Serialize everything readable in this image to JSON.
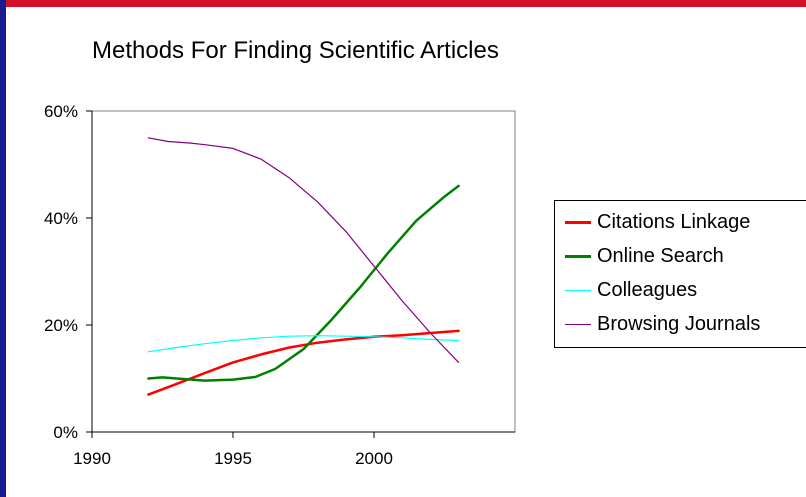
{
  "chart_data": {
    "type": "line",
    "title": "Methods For Finding Scientific Articles",
    "xlabel": "",
    "ylabel": "",
    "xlim": [
      1990,
      2005
    ],
    "ylim": [
      0,
      60
    ],
    "x_ticks": [
      "1990",
      "1995",
      "2000"
    ],
    "y_ticks": [
      "0%",
      "20%",
      "40%",
      "60%"
    ],
    "grid": false,
    "legend_position": "right",
    "series": [
      {
        "name": "Citations Linkage",
        "color": "#ff0000",
        "x": [
          1992,
          1993,
          1994,
          1995,
          1996,
          1997,
          1998,
          1999,
          2000,
          2001,
          2002,
          2003
        ],
        "values": [
          7,
          9,
          11,
          13,
          14.5,
          15.8,
          16.7,
          17.3,
          17.8,
          18.1,
          18.5,
          18.9
        ]
      },
      {
        "name": "Online Search",
        "color": "#008000",
        "x": [
          1992,
          1992.5,
          1993,
          1994,
          1995,
          1995.8,
          1996.5,
          1997.5,
          1998.5,
          1999.5,
          2000.5,
          2001.5,
          2002.5,
          2003
        ],
        "values": [
          10,
          10.2,
          10,
          9.6,
          9.8,
          10.3,
          11.8,
          15.5,
          21,
          27,
          33.5,
          39.5,
          44,
          46
        ]
      },
      {
        "name": "Colleagues",
        "color": "#00ffff",
        "x": [
          1992,
          1993,
          1994,
          1995,
          1996,
          1997,
          1998,
          1999,
          2000,
          2001,
          2002,
          2003
        ],
        "values": [
          15,
          15.8,
          16.5,
          17.1,
          17.6,
          17.9,
          18,
          17.9,
          17.8,
          17.6,
          17.3,
          17.1
        ]
      },
      {
        "name": "Browsing Journals",
        "color": "#800080",
        "x": [
          1992,
          1992.7,
          1993.5,
          1994,
          1995,
          1996,
          1997,
          1998,
          1999,
          2000,
          2001,
          2002,
          2003
        ],
        "values": [
          55,
          54.3,
          54,
          53.7,
          53,
          51,
          47.5,
          43,
          37.5,
          31,
          24.5,
          18.5,
          13
        ]
      }
    ]
  }
}
